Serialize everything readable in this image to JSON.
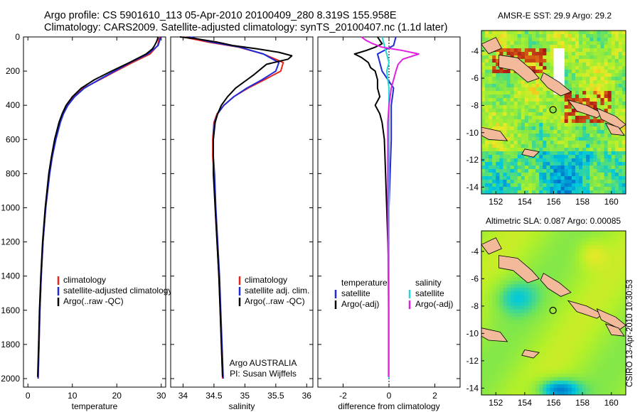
{
  "title": {
    "line1": "Argo profile: CS 5901610_113 05-Apr-2010 20100409_280 8.319S 155.958E",
    "line2": "Climatology: CARS2009. Satellite-adjusted climatology: synTS_20100407.nc (1.1d later)"
  },
  "map_sst": {
    "title": "AMSR-E SST: 29.9 Argo: 29.2"
  },
  "map_sla": {
    "title": "Altimetric SLA: 0.087 Argo: 0.00085"
  },
  "credit": "CSIRO 13-Apr-2010 10:30:53",
  "colors": {
    "climatology": "#e8251c",
    "satellite": "#1f2bd8",
    "argo": "#000000",
    "sal_satellite": "#22d8d8",
    "sal_argo": "#e020e0"
  },
  "chart_data": [
    {
      "type": "line",
      "xlabel": "temperature",
      "xlim": [
        -1,
        31
      ],
      "ylim": [
        2050,
        0
      ],
      "xticks": [
        0,
        10,
        20,
        30
      ],
      "yticks": [
        0,
        200,
        400,
        600,
        800,
        1000,
        1200,
        1400,
        1600,
        1800,
        2000
      ],
      "legend": [
        "climatology",
        "satellite-adjusted climatology",
        "Argo(..raw -QC)"
      ],
      "legend_position": "lower-center",
      "series": [
        {
          "name": "climatology",
          "depth": [
            0,
            50,
            100,
            150,
            200,
            250,
            300,
            350,
            400,
            450,
            500,
            600,
            700,
            800,
            1000,
            1200,
            1400,
            1600,
            1800,
            2000
          ],
          "values": [
            29.6,
            29.2,
            27.5,
            23.5,
            19.8,
            16.2,
            12.5,
            10.3,
            8.9,
            7.9,
            7.2,
            6.2,
            5.4,
            4.8,
            4.0,
            3.4,
            3.0,
            2.7,
            2.5,
            2.3
          ]
        },
        {
          "name": "satellite-adjusted climatology",
          "depth": [
            0,
            50,
            100,
            150,
            200,
            250,
            300,
            350,
            400,
            450,
            500,
            600,
            700,
            800,
            1000,
            1200,
            1400,
            1600,
            1800,
            2000
          ],
          "values": [
            29.9,
            29.3,
            27.0,
            23.0,
            19.5,
            16.0,
            12.7,
            10.5,
            9.0,
            8.0,
            7.3,
            6.3,
            5.5,
            4.9,
            4.0,
            3.4,
            3.0,
            2.7,
            2.5,
            2.3
          ]
        },
        {
          "name": "Argo(..raw -QC)",
          "depth": [
            0,
            10,
            30,
            50,
            70,
            100,
            150,
            200,
            250,
            300,
            350,
            400,
            450,
            500,
            600,
            700,
            800,
            1000,
            1200,
            1400,
            1600,
            1800,
            1990
          ],
          "values": [
            29.2,
            29.2,
            28.9,
            28.5,
            28.0,
            26.6,
            22.8,
            18.8,
            15.0,
            12.0,
            10.0,
            8.6,
            7.7,
            7.0,
            6.0,
            5.3,
            4.7,
            3.9,
            3.3,
            2.9,
            2.6,
            2.4,
            2.2
          ]
        }
      ]
    },
    {
      "type": "line",
      "xlabel": "salinity",
      "xlim": [
        33.8,
        36.1
      ],
      "ylim": [
        2050,
        0
      ],
      "xticks": [
        34,
        34.5,
        35,
        35.5,
        36
      ],
      "legend": [
        "climatology",
        "satellite adj. clim.",
        "Argo(..raw -QC)"
      ],
      "legend_position": "lower-center",
      "annotation": [
        "Argo AUSTRALIA",
        "PI: Susan Wijffels"
      ],
      "series": [
        {
          "name": "climatology",
          "depth": [
            0,
            30,
            60,
            100,
            150,
            200,
            250,
            300,
            350,
            400,
            450,
            500,
            600,
            700,
            800,
            1000,
            1200,
            1400,
            1600,
            1800,
            2000
          ],
          "values": [
            34.0,
            34.4,
            34.9,
            35.3,
            35.62,
            35.58,
            35.32,
            35.05,
            34.82,
            34.66,
            34.55,
            34.5,
            34.48,
            34.48,
            34.5,
            34.52,
            34.55,
            34.58,
            34.6,
            34.62,
            34.64
          ]
        },
        {
          "name": "satellite adj. clim.",
          "depth": [
            0,
            30,
            60,
            100,
            150,
            200,
            250,
            300,
            350,
            400,
            450,
            500,
            600,
            700,
            800,
            1000,
            1200,
            1400,
            1600,
            1800,
            2000
          ],
          "values": [
            34.1,
            34.45,
            34.92,
            35.3,
            35.55,
            35.5,
            35.28,
            35.03,
            34.82,
            34.66,
            34.56,
            34.51,
            34.49,
            34.49,
            34.51,
            34.53,
            34.56,
            34.59,
            34.61,
            34.63,
            34.65
          ]
        },
        {
          "name": "Argo(..raw -QC)",
          "depth": [
            0,
            10,
            30,
            50,
            70,
            90,
            110,
            130,
            160,
            190,
            220,
            260,
            300,
            350,
            400,
            450,
            500,
            600,
            800,
            1000,
            1200,
            1400,
            1600,
            1800,
            1990
          ],
          "values": [
            33.95,
            34.2,
            34.55,
            34.8,
            35.2,
            35.55,
            35.76,
            35.7,
            35.35,
            35.25,
            35.15,
            35.0,
            34.85,
            34.72,
            34.62,
            34.56,
            34.52,
            34.49,
            34.49,
            34.52,
            34.55,
            34.58,
            34.6,
            34.62,
            34.64
          ]
        }
      ]
    },
    {
      "type": "line",
      "xlabel": "difference from climatology",
      "xlim": [
        -3.1,
        3.1
      ],
      "ylim": [
        2050,
        0
      ],
      "xticks": [
        -2,
        0,
        2
      ],
      "legend": [
        "temperature",
        "satellite",
        "Argo(-adj)",
        "salinity",
        "satellite",
        "Argo(-adj)"
      ],
      "legend_position": "lower-center",
      "series": [
        {
          "name": "satellite",
          "depth": [
            0,
            50,
            100,
            200,
            300,
            400,
            600,
            1000,
            2000
          ],
          "values": [
            0.3,
            0.2,
            -0.5,
            -0.3,
            0.2,
            0.1,
            0.1,
            0.0,
            0.0
          ]
        },
        {
          "name": "Argo(-adj)",
          "depth": [
            0,
            20,
            40,
            60,
            80,
            100,
            120,
            150,
            180,
            200,
            250,
            300,
            350,
            400,
            450,
            500,
            600,
            800,
            1000,
            1200,
            1400,
            1600,
            1800,
            1990
          ],
          "values": [
            -0.5,
            -0.4,
            -0.3,
            -0.6,
            -1.0,
            -1.5,
            -1.2,
            -0.9,
            -0.8,
            -0.6,
            -0.5,
            -0.5,
            -0.4,
            -0.6,
            -0.4,
            -0.3,
            -0.2,
            -0.15,
            -0.1,
            -0.05,
            0.0,
            0.0,
            0.0,
            0.0
          ]
        },
        {
          "name": "satellite",
          "depth": [
            0,
            50,
            100,
            150,
            200,
            300,
            400,
            600,
            1000,
            2000
          ],
          "values": [
            -0.3,
            -0.2,
            -0.1,
            0.0,
            -0.1,
            0.0,
            0.0,
            0.0,
            0.0,
            0.0
          ]
        },
        {
          "name": "Argo(-adj)",
          "depth": [
            0,
            20,
            40,
            60,
            80,
            100,
            130,
            160,
            200,
            250,
            300,
            400,
            500,
            600,
            800,
            1000,
            1200,
            1400,
            1600,
            1800,
            1990
          ],
          "values": [
            -1.2,
            -1.0,
            -0.7,
            -0.3,
            0.6,
            1.3,
            0.6,
            0.4,
            0.3,
            0.2,
            0.1,
            0.0,
            -0.05,
            -0.05,
            -0.05,
            -0.05,
            -0.04,
            -0.03,
            -0.02,
            -0.02,
            -0.02
          ]
        }
      ]
    },
    {
      "type": "heatmap",
      "title": "AMSR-E SST: 29.9 Argo: 29.2",
      "xlim": [
        151,
        161
      ],
      "ylim": [
        -14.5,
        -2.5
      ],
      "xticks": [
        152,
        154,
        156,
        158,
        160
      ],
      "yticks": [
        -4,
        -6,
        -8,
        -10,
        -12,
        -14
      ],
      "marker": {
        "lon": 155.958,
        "lat": -8.319
      }
    },
    {
      "type": "heatmap",
      "title": "Altimetric SLA: 0.087 Argo: 0.00085",
      "xlim": [
        151,
        161
      ],
      "ylim": [
        -14.5,
        -2.5
      ],
      "xticks": [
        152,
        154,
        156,
        158,
        160
      ],
      "yticks": [
        -4,
        -6,
        -8,
        -10,
        -12,
        -14
      ],
      "marker": {
        "lon": 155.958,
        "lat": -8.319
      }
    }
  ]
}
